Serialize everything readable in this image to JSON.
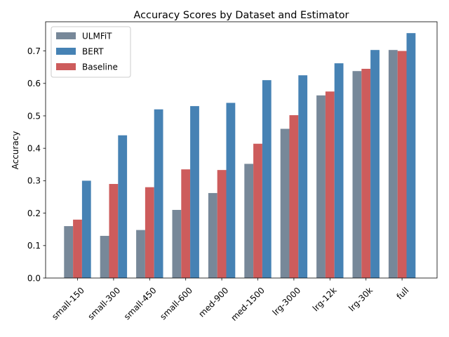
{
  "chart_data": {
    "type": "bar",
    "title": "Accuracy Scores by Dataset and Estimator",
    "xlabel": "",
    "ylabel": "Accuracy",
    "ylim": [
      0,
      0.79
    ],
    "yticks": [
      0.0,
      0.1,
      0.2,
      0.3,
      0.4,
      0.5,
      0.6,
      0.7
    ],
    "ytick_labels": [
      "0.0",
      "0.1",
      "0.2",
      "0.3",
      "0.4",
      "0.5",
      "0.6",
      "0.7"
    ],
    "categories": [
      "small-150",
      "small-300",
      "small-450",
      "small-600",
      "med-900",
      "med-1500",
      "lrg-3000",
      "lrg-12k",
      "lrg-30k",
      "full"
    ],
    "series": [
      {
        "name": "ULMFiT",
        "color": "#778899",
        "values": [
          0.16,
          0.13,
          0.148,
          0.21,
          0.262,
          0.352,
          0.46,
          0.563,
          0.638,
          0.703
        ]
      },
      {
        "name": "BERT",
        "color": "#4682b4",
        "values": [
          0.3,
          0.44,
          0.52,
          0.53,
          0.54,
          0.61,
          0.625,
          0.662,
          0.703,
          0.755
        ]
      },
      {
        "name": "Baseline",
        "color": "#cd5c5c",
        "values": [
          0.18,
          0.29,
          0.28,
          0.335,
          0.333,
          0.414,
          0.502,
          0.575,
          0.645,
          0.7
        ]
      }
    ],
    "bar_order": [
      "ULMFiT",
      "Baseline",
      "BERT"
    ],
    "legend": {
      "placement": "top-left"
    },
    "grid": false
  }
}
